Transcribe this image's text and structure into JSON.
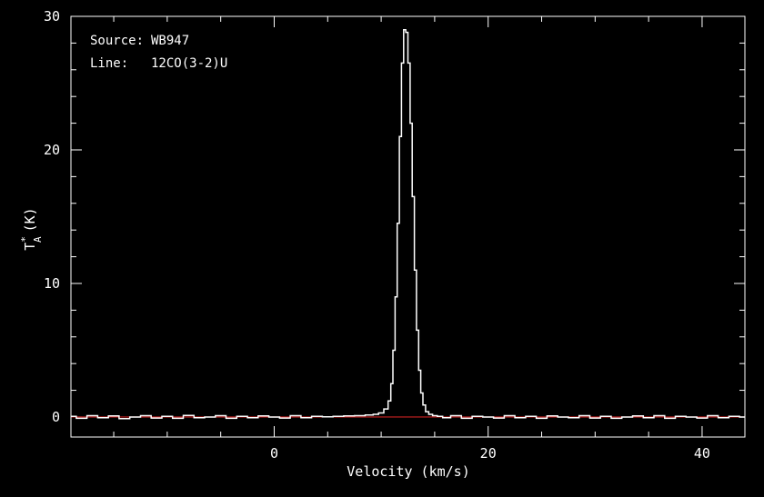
{
  "chart_data": {
    "type": "line",
    "xlabel": "Velocity (km/s)",
    "ylabel": {
      "base": "T",
      "subscript": "A",
      "superscript": "*",
      "unit": "(K)"
    },
    "xlim": [
      -19,
      44
    ],
    "ylim": [
      -1.5,
      30
    ],
    "xticks_major": [
      0,
      20,
      40
    ],
    "yticks_major": [
      0,
      10,
      20,
      30
    ],
    "x_minor_step": 5,
    "y_minor_step": 2,
    "info": {
      "source_label": "Source:",
      "source_value": "WB947",
      "line_label": "Line:",
      "line_value": "12CO(3-2)U"
    },
    "baseline": {
      "y": 0,
      "color": "#cc2222"
    },
    "line_color": "#ffffff",
    "series": [
      {
        "x": [
          -19,
          -18,
          -17,
          -16,
          -15,
          -14,
          -13,
          -12,
          -11,
          -10,
          -9,
          -8,
          -7,
          -6,
          -5,
          -4,
          -3,
          -2,
          -1,
          0,
          1,
          2,
          3,
          4,
          5,
          6,
          7,
          8,
          9,
          9.5,
          10,
          10.5,
          10.8,
          11.0,
          11.2,
          11.4,
          11.6,
          11.8,
          12.0,
          12.2,
          12.4,
          12.6,
          12.8,
          13.0,
          13.2,
          13.4,
          13.6,
          13.8,
          14.0,
          14.3,
          14.6,
          15.0,
          15.5,
          16,
          17,
          18,
          19,
          20,
          21,
          22,
          23,
          24,
          25,
          26,
          27,
          28,
          29,
          30,
          31,
          32,
          33,
          34,
          35,
          36,
          37,
          38,
          39,
          40,
          41,
          42,
          43,
          44
        ],
        "y": [
          0.05,
          -0.1,
          0.1,
          -0.05,
          0.08,
          -0.12,
          0.0,
          0.1,
          -0.08,
          0.05,
          -0.1,
          0.12,
          -0.05,
          0.0,
          0.1,
          -0.1,
          0.05,
          -0.05,
          0.08,
          0.0,
          -0.08,
          0.1,
          -0.05,
          0.05,
          0.02,
          0.05,
          0.08,
          0.1,
          0.15,
          0.2,
          0.3,
          0.6,
          1.2,
          2.5,
          5.0,
          9.0,
          14.5,
          21.0,
          26.5,
          29.0,
          28.8,
          26.5,
          22.0,
          16.5,
          11.0,
          6.5,
          3.5,
          1.8,
          0.9,
          0.4,
          0.2,
          0.1,
          0.05,
          -0.05,
          0.1,
          -0.1,
          0.05,
          0.0,
          -0.08,
          0.1,
          -0.05,
          0.05,
          -0.1,
          0.08,
          0.0,
          -0.05,
          0.1,
          -0.08,
          0.05,
          -0.1,
          0.0,
          0.08,
          -0.05,
          0.1,
          -0.1,
          0.05,
          0.0,
          -0.08,
          0.1,
          -0.05,
          0.05,
          0.0
        ]
      }
    ]
  }
}
